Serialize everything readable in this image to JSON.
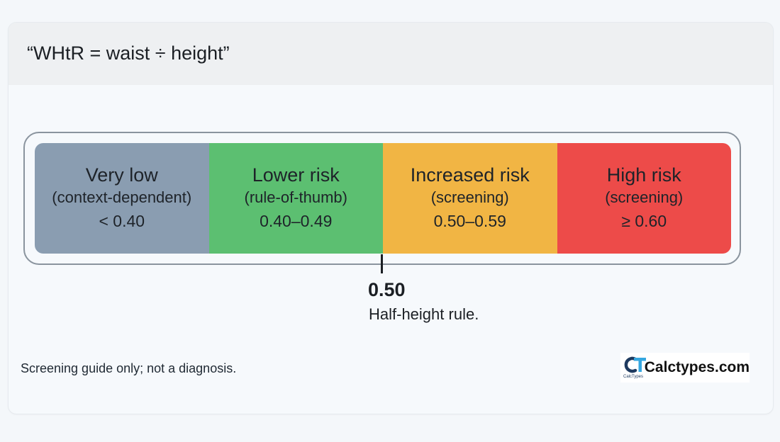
{
  "header": {
    "title": "“WHtR = waist ÷ height”"
  },
  "scale": {
    "bands": [
      {
        "name": "Very low",
        "note": "(context-dependent)",
        "range": "< 0.40",
        "color": "#8a9db1"
      },
      {
        "name": "Lower risk",
        "note": "(rule-of-thumb)",
        "range": "0.40–0.49",
        "color": "#5cbf71"
      },
      {
        "name": "Increased risk",
        "note": "(screening)",
        "range": "0.50–0.59",
        "color": "#f1b544"
      },
      {
        "name": "High risk",
        "note": "(screening)",
        "range": "≥ 0.60",
        "color": "#ed4b49"
      }
    ],
    "marker": {
      "value": "0.50",
      "caption": "Half-height rule."
    }
  },
  "footer": {
    "disclaimer": "Screening guide only; not a diagnosis.",
    "brand": {
      "name": "Calctypes.com",
      "sub": "CalcTypes",
      "logo_icon": "ct-logo-icon",
      "colors": {
        "c": "#1e3a5f",
        "t": "#35a7e0"
      }
    }
  }
}
